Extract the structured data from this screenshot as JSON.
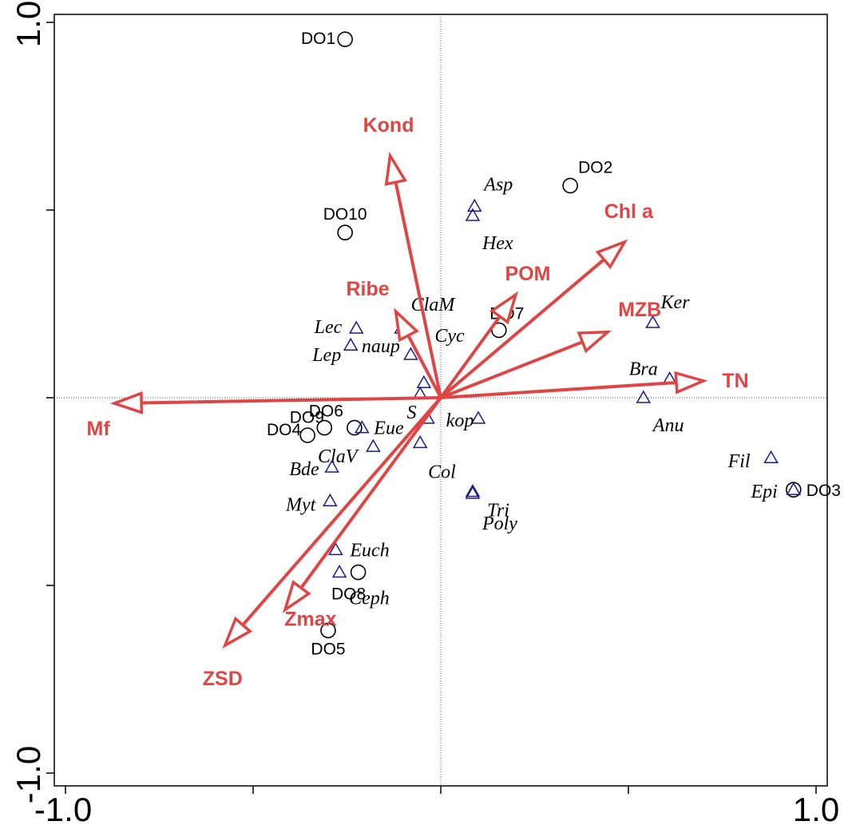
{
  "chart_data": {
    "type": "scatter",
    "subtype": "ordination-biplot",
    "xlim": [
      -1.0,
      1.0
    ],
    "ylim": [
      -1.0,
      1.0
    ],
    "x_ticks": [
      -1.0,
      -0.5,
      0,
      0.5,
      1.0
    ],
    "y_ticks": [
      -1.0,
      -0.5,
      0,
      0.5,
      1.0
    ],
    "x_tick_labels": {
      "-1.0": "-1.0",
      "1.0": "1.0"
    },
    "y_tick_labels": {
      "-1.0": "-1.0",
      "1.0": "1.0"
    },
    "zero_lines": true,
    "colors": {
      "arrow": "#e04545",
      "species_marker": "#1a1a8c",
      "site_marker": "#000000"
    },
    "sites": [
      {
        "label": "DO1",
        "x": -0.255,
        "y": 0.955
      },
      {
        "label": "DO2",
        "x": 0.345,
        "y": 0.565
      },
      {
        "label": "DO3",
        "x": 0.94,
        "y": -0.245
      },
      {
        "label": "DO4",
        "x": -0.355,
        "y": -0.1
      },
      {
        "label": "DO5",
        "x": -0.3,
        "y": -0.62
      },
      {
        "label": "DO6",
        "x": -0.31,
        "y": -0.08
      },
      {
        "label": "DO7",
        "x": 0.155,
        "y": 0.18
      },
      {
        "label": "DO8",
        "x": -0.22,
        "y": -0.465
      },
      {
        "label": "DO9",
        "x": -0.23,
        "y": -0.08
      },
      {
        "label": "DO10",
        "x": -0.255,
        "y": 0.44
      }
    ],
    "species": [
      {
        "label": "Asp",
        "x": 0.09,
        "y": 0.51
      },
      {
        "label": "Hex",
        "x": 0.085,
        "y": 0.485
      },
      {
        "label": "ClaM",
        "x": -0.105,
        "y": 0.185
      },
      {
        "label": "Lec",
        "x": -0.225,
        "y": 0.185
      },
      {
        "label": "Lep",
        "x": -0.24,
        "y": 0.14
      },
      {
        "label": "Cyc",
        "x": -0.08,
        "y": 0.115
      },
      {
        "label": "naup",
        "x": -0.045,
        "y": 0.04
      },
      {
        "label": "",
        "x": -0.055,
        "y": 0.01
      },
      {
        "label": "Ker",
        "x": 0.565,
        "y": 0.2
      },
      {
        "label": "Bra",
        "x": 0.61,
        "y": 0.05
      },
      {
        "label": "Anu",
        "x": 0.54,
        "y": 0.0
      },
      {
        "label": "S",
        "x": -0.035,
        "y": -0.055
      },
      {
        "label": "kop",
        "x": 0.1,
        "y": -0.055
      },
      {
        "label": "Eue",
        "x": -0.21,
        "y": -0.08
      },
      {
        "label": "ClaV",
        "x": -0.18,
        "y": -0.13
      },
      {
        "label": "Col",
        "x": -0.055,
        "y": -0.12
      },
      {
        "label": "Tri",
        "x": 0.085,
        "y": -0.25
      },
      {
        "label": "Bde",
        "x": -0.29,
        "y": -0.185
      },
      {
        "label": "Myt",
        "x": -0.295,
        "y": -0.275
      },
      {
        "label": "Poly",
        "x": 0.085,
        "y": -0.255
      },
      {
        "label": "Euch",
        "x": -0.28,
        "y": -0.405
      },
      {
        "label": "Ceph",
        "x": -0.27,
        "y": -0.465
      },
      {
        "label": "Fil",
        "x": 0.88,
        "y": -0.16
      },
      {
        "label": "Epi",
        "x": 0.94,
        "y": -0.245
      }
    ],
    "env_vectors": [
      {
        "label": "Kond",
        "x": -0.135,
        "y": 0.645
      },
      {
        "label": "Chl a",
        "x": 0.49,
        "y": 0.415
      },
      {
        "label": "POM",
        "x": 0.2,
        "y": 0.275
      },
      {
        "label": "Ribe",
        "x": -0.12,
        "y": 0.23
      },
      {
        "label": "MZB",
        "x": 0.445,
        "y": 0.175
      },
      {
        "label": "TN",
        "x": 0.7,
        "y": 0.045
      },
      {
        "label": "Mf",
        "x": -0.87,
        "y": -0.015
      },
      {
        "label": "Zmax",
        "x": -0.415,
        "y": -0.565
      },
      {
        "label": "ZSD",
        "x": -0.575,
        "y": -0.66
      }
    ]
  }
}
